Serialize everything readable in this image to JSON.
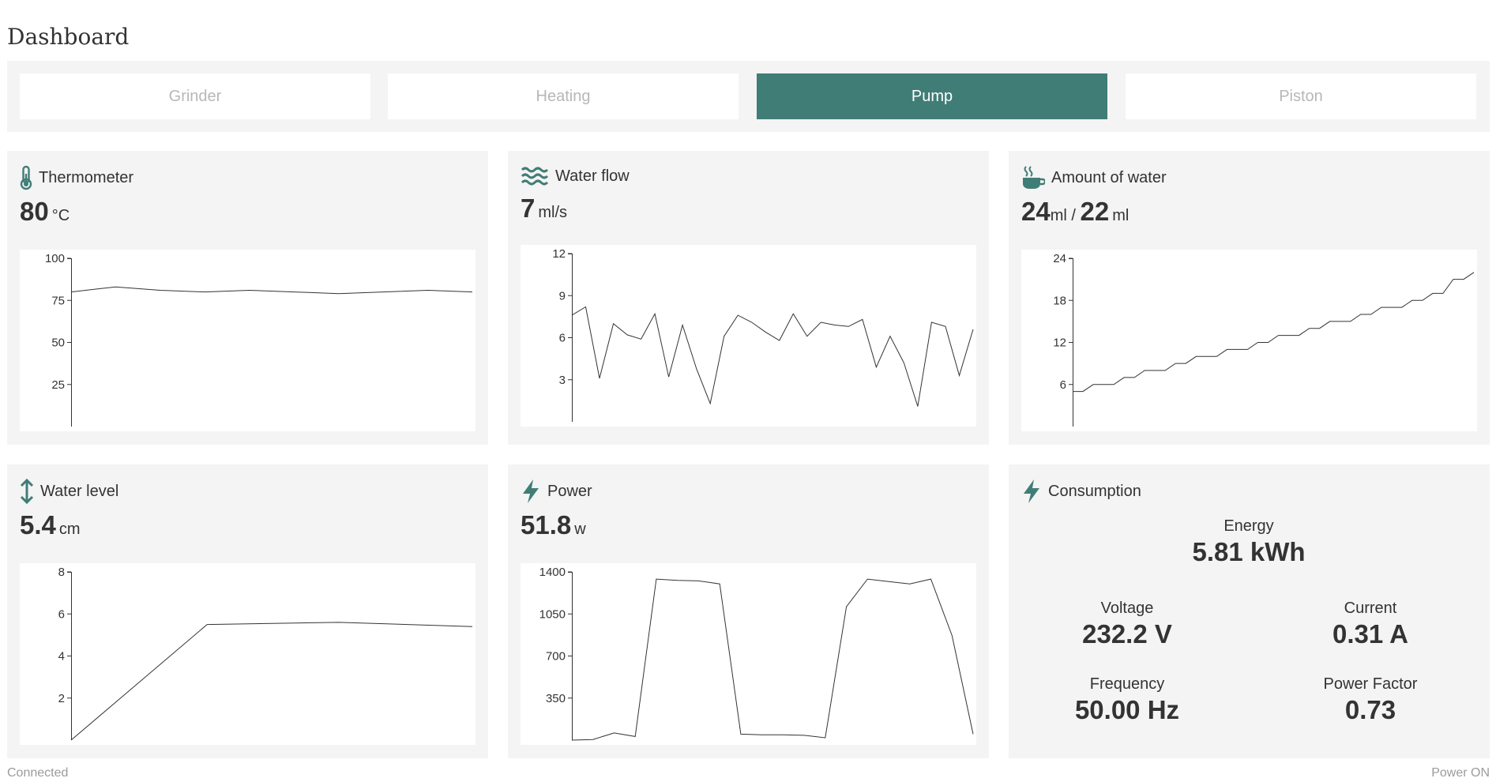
{
  "header": {
    "title": "Dashboard"
  },
  "tabs": [
    {
      "label": "Grinder",
      "active": false
    },
    {
      "label": "Heating",
      "active": false
    },
    {
      "label": "Pump",
      "active": true
    },
    {
      "label": "Piston",
      "active": false
    }
  ],
  "colors": {
    "accent": "#417d77",
    "panel": "#f3f4f3",
    "inactive_tab_text": "#b6b8b7"
  },
  "cards": {
    "thermometer": {
      "title": "Thermometer",
      "icon": "thermometer-icon",
      "value": "80",
      "unit": "°C"
    },
    "water_flow": {
      "title": "Water flow",
      "icon": "water-waves-icon",
      "value": "7",
      "unit": "ml/s"
    },
    "amount_of_water": {
      "title": "Amount of water",
      "icon": "coffee-cup-icon",
      "value": "24",
      "unit": "ml",
      "separator": " / ",
      "target": "22",
      "target_unit": "ml"
    },
    "water_level": {
      "title": "Water level",
      "icon": "vertical-arrows-icon",
      "value": "5.4",
      "unit": "cm"
    },
    "power": {
      "title": "Power",
      "icon": "lightning-icon",
      "value": "51.8",
      "unit": "w"
    },
    "consumption": {
      "title": "Consumption",
      "icon": "lightning-icon",
      "energy": {
        "label": "Energy",
        "value": "5.81 kWh"
      },
      "voltage": {
        "label": "Voltage",
        "value": "232.2 V"
      },
      "current": {
        "label": "Current",
        "value": "0.31 A"
      },
      "frequency": {
        "label": "Frequency",
        "value": "50.00 Hz"
      },
      "power_factor": {
        "label": "Power Factor",
        "value": "0.73"
      }
    }
  },
  "footer": {
    "left": "Connected",
    "right": "Power ON"
  },
  "chart_data": [
    {
      "id": "thermometer",
      "type": "line",
      "y_ticks": [
        25,
        50,
        75,
        100
      ],
      "ylim": [
        0,
        100
      ],
      "xlabel": "",
      "ylabel": "",
      "series": [
        {
          "values": [
            80,
            83,
            81,
            80,
            81,
            80,
            79,
            80,
            81,
            80
          ]
        }
      ]
    },
    {
      "id": "water_flow",
      "type": "line",
      "y_ticks": [
        3,
        6,
        9,
        12
      ],
      "ylim": [
        0,
        12
      ],
      "xlabel": "",
      "ylabel": "",
      "series": [
        {
          "values": [
            7.6,
            8.2,
            3.1,
            7.0,
            6.2,
            5.9,
            7.7,
            3.2,
            6.9,
            3.8,
            1.3,
            6.1,
            7.6,
            7.1,
            6.4,
            5.8,
            7.7,
            6.1,
            7.1,
            6.9,
            6.8,
            7.3,
            3.9,
            6.1,
            4.2,
            1.1,
            7.1,
            6.8,
            3.3,
            6.6
          ]
        }
      ]
    },
    {
      "id": "amount_of_water",
      "type": "line",
      "y_ticks": [
        6,
        12,
        18,
        24
      ],
      "ylim": [
        0,
        24
      ],
      "xlabel": "",
      "ylabel": "",
      "series": [
        {
          "values": [
            5,
            5,
            6,
            6,
            6,
            7,
            7,
            8,
            8,
            8,
            9,
            9,
            10,
            10,
            10,
            11,
            11,
            11,
            12,
            12,
            13,
            13,
            13,
            14,
            14,
            15,
            15,
            15,
            16,
            16,
            17,
            17,
            17,
            18,
            18,
            19,
            19,
            21,
            21,
            22
          ]
        }
      ]
    },
    {
      "id": "water_level",
      "type": "line",
      "y_ticks": [
        2,
        4,
        6,
        8
      ],
      "ylim": [
        0,
        8
      ],
      "xlabel": "",
      "ylabel": "",
      "series": [
        {
          "values": [
            0,
            5.5,
            5.6,
            5.4
          ],
          "x": [
            0,
            0.339,
            0.667,
            1
          ]
        }
      ]
    },
    {
      "id": "power",
      "type": "line",
      "y_ticks": [
        350,
        700,
        1050,
        1400
      ],
      "ylim": [
        0,
        1400
      ],
      "xlabel": "",
      "ylabel": "",
      "series": [
        {
          "values": [
            0,
            5,
            60,
            30,
            1340,
            1330,
            1325,
            1300,
            50,
            45,
            45,
            40,
            20,
            1110,
            1340,
            1320,
            1300,
            1340,
            870,
            50
          ]
        }
      ]
    }
  ]
}
